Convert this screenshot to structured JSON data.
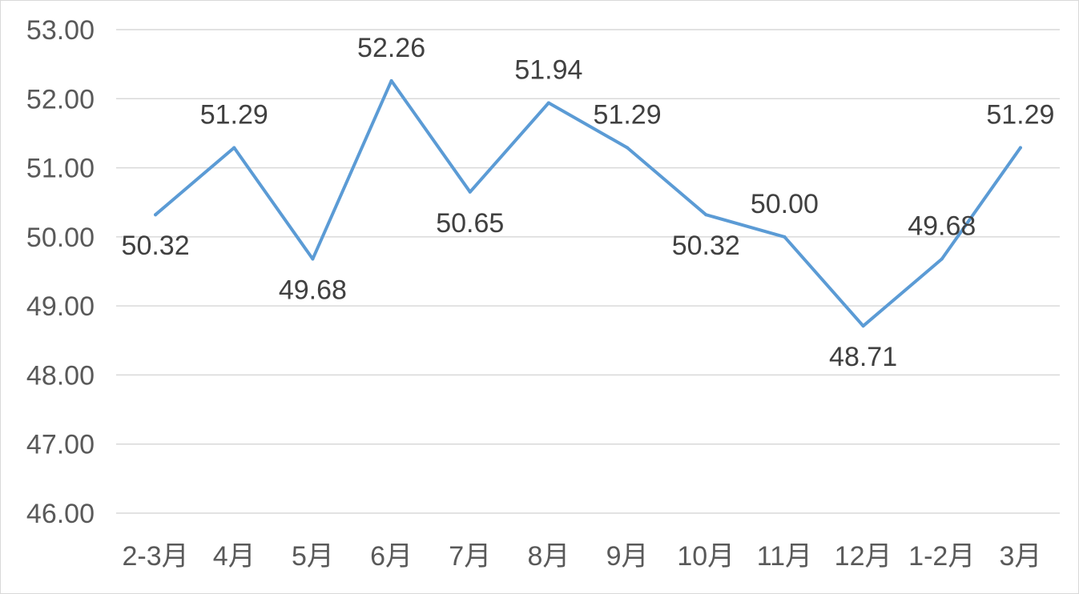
{
  "chart_data": {
    "type": "line",
    "title": "",
    "xlabel": "",
    "ylabel": "",
    "categories": [
      "2-3月",
      "4月",
      "5月",
      "6月",
      "7月",
      "8月",
      "9月",
      "10月",
      "11月",
      "12月",
      "1-2月",
      "3月"
    ],
    "series": [
      {
        "values": [
          50.32,
          51.29,
          49.68,
          52.26,
          50.65,
          51.94,
          51.29,
          50.32,
          50.0,
          48.71,
          49.68,
          51.29
        ],
        "color": "#5b9bd5"
      }
    ],
    "data_labels": [
      "50.32",
      "51.29",
      "49.68",
      "52.26",
      "50.65",
      "51.94",
      "51.29",
      "50.32",
      "50.00",
      "48.71",
      "49.68",
      "51.29"
    ],
    "label_positions": [
      "below",
      "above",
      "below",
      "above",
      "below",
      "above",
      "above",
      "below",
      "above",
      "below",
      "above",
      "above"
    ],
    "ylim": [
      46,
      53
    ],
    "y_ticks": [
      "46.00",
      "47.00",
      "48.00",
      "49.00",
      "50.00",
      "51.00",
      "52.00",
      "53.00"
    ],
    "y_tick_values": [
      46,
      47,
      48,
      49,
      50,
      51,
      52,
      53
    ],
    "grid": true,
    "legend": "none"
  }
}
